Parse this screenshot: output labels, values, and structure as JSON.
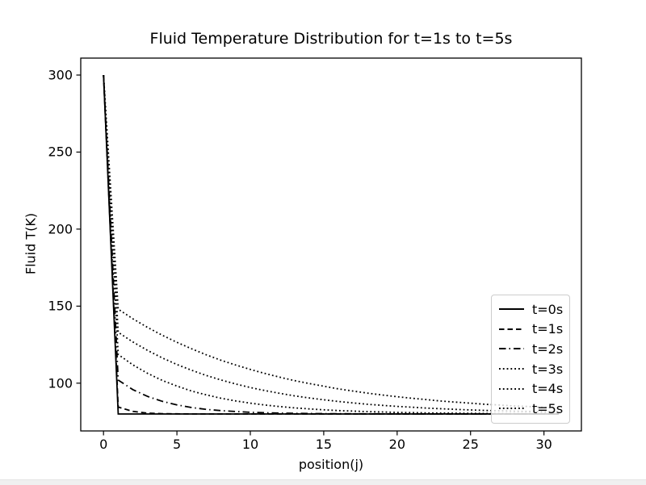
{
  "figure": {
    "background": "#ffffff"
  },
  "window": {
    "bottom_strip_color": "#f0f0f0"
  },
  "chart_data": {
    "type": "line",
    "title": "Fluid Temperature Distribution for t=1s to t=5s",
    "xlabel": "position(j)",
    "ylabel": "Fluid T(K)",
    "xlim": [
      -1.55,
      32.55
    ],
    "ylim": [
      69,
      311
    ],
    "xticks": [
      0,
      5,
      10,
      15,
      20,
      25,
      30
    ],
    "xtick_labels": [
      "0",
      "5",
      "10",
      "15",
      "20",
      "25",
      "30"
    ],
    "yticks": [
      100,
      150,
      200,
      250,
      300
    ],
    "ytick_labels": [
      "100",
      "150",
      "200",
      "250",
      "300"
    ],
    "grid": false,
    "line_color": "#000000",
    "axis_color": "#000000",
    "legend": {
      "position": "lower right",
      "border_color": "#cccccc"
    },
    "x": [
      0,
      1,
      2,
      3,
      4,
      5,
      6,
      7,
      8,
      9,
      10,
      11,
      12,
      13,
      14,
      15,
      16,
      17,
      18,
      19,
      20,
      21,
      22,
      23,
      24,
      25,
      26,
      27,
      28,
      29,
      30,
      31
    ],
    "series": [
      {
        "name": "t=0s",
        "linestyle": "solid",
        "values": [
          300,
          80,
          80,
          80,
          80,
          80,
          80,
          80,
          80,
          80,
          80,
          80,
          80,
          80,
          80,
          80,
          80,
          80,
          80,
          80,
          80,
          80,
          80,
          80,
          80,
          80,
          80,
          80,
          80,
          80,
          80,
          80
        ]
      },
      {
        "name": "t=1s",
        "linestyle": "dashed",
        "values": [
          300,
          84.5,
          81.7,
          80.6,
          80.2,
          80.1,
          80,
          80,
          80,
          80,
          80,
          80,
          80,
          80,
          80,
          80,
          80,
          80,
          80,
          80,
          80,
          80,
          80,
          80,
          80,
          80,
          80,
          80,
          80,
          80,
          80,
          80
        ]
      },
      {
        "name": "t=2s",
        "linestyle": "dashdot",
        "values": [
          300,
          102,
          95.8,
          91.4,
          88.2,
          85.9,
          84.2,
          83,
          82.2,
          81.6,
          81.1,
          80.8,
          80.6,
          80.4,
          80.3,
          80.2,
          80.2,
          80.1,
          80.1,
          80.1,
          80,
          80,
          80,
          80,
          80,
          80,
          80,
          80,
          80,
          80,
          80,
          80
        ]
      },
      {
        "name": "t=3s",
        "linestyle": "dotted",
        "values": [
          300,
          118.6,
          111.9,
          106.4,
          101.8,
          98.1,
          94.9,
          92.4,
          90.2,
          88.5,
          87,
          85.8,
          84.8,
          84,
          83.3,
          82.7,
          82.2,
          81.9,
          81.5,
          81.3,
          81,
          80.9,
          80.7,
          80.6,
          80.5,
          80.4,
          80.3,
          80.3,
          80.2,
          80.2,
          80.2,
          80.1
        ]
      },
      {
        "name": "t=4s",
        "linestyle": "dotted",
        "values": [
          300,
          133,
          126.8,
          121.3,
          116.4,
          112.1,
          108.4,
          105,
          102.1,
          99.5,
          97.2,
          95.2,
          93.4,
          91.8,
          90.4,
          89.2,
          88.1,
          87.2,
          86.3,
          85.6,
          84.9,
          84.4,
          83.8,
          83.4,
          83,
          82.6,
          82.3,
          82.1,
          81.8,
          81.6,
          81.4,
          81.3
        ]
      },
      {
        "name": "t=5s",
        "linestyle": "dotted",
        "values": [
          300,
          148,
          141.8,
          136.2,
          131.1,
          126.5,
          122.3,
          118.4,
          114.9,
          111.8,
          108.9,
          106.3,
          103.9,
          101.7,
          99.8,
          98,
          96.3,
          94.9,
          93.5,
          92.3,
          91.2,
          90.2,
          89.3,
          88.4,
          87.7,
          87,
          86.3,
          85.8,
          85.2,
          84.8,
          84.3,
          83.9
        ]
      }
    ]
  }
}
